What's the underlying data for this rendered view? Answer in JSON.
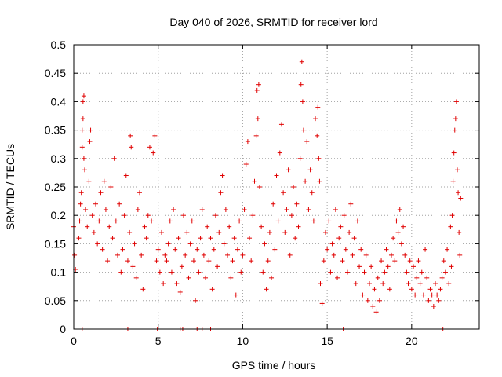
{
  "chart_data": {
    "type": "scatter",
    "title": "Day 040 of 2026, SRMTID for receiver lord",
    "xlabel": "GPS time / hours",
    "ylabel": "SRMTID / TECUs",
    "xlim": [
      0,
      24
    ],
    "ylim": [
      0,
      0.5
    ],
    "x_ticks": [
      "0",
      "5",
      "10",
      "15",
      "20"
    ],
    "x_tick_values": [
      0,
      5,
      10,
      15,
      20
    ],
    "y_ticks": [
      "0",
      "0.05",
      "0.1",
      "0.15",
      "0.2",
      "0.25",
      "0.3",
      "0.35",
      "0.4",
      "0.45",
      "0.5"
    ],
    "y_tick_values": [
      0,
      0.05,
      0.1,
      0.15,
      0.2,
      0.25,
      0.3,
      0.35,
      0.4,
      0.45,
      0.5
    ],
    "grid": true,
    "marker": "+",
    "marker_color": "#e00000",
    "series": [
      {
        "name": "SRMTID",
        "points": [
          [
            0.0,
            0.18
          ],
          [
            0.05,
            0.13
          ],
          [
            0.1,
            0.105
          ],
          [
            0.3,
            0.16
          ],
          [
            0.35,
            0.19
          ],
          [
            0.4,
            0.22
          ],
          [
            0.45,
            0.24
          ],
          [
            0.5,
            0.32
          ],
          [
            0.5,
            0.35
          ],
          [
            0.55,
            0.37
          ],
          [
            0.55,
            0.4
          ],
          [
            0.6,
            0.41
          ],
          [
            0.6,
            0.3
          ],
          [
            0.65,
            0.28
          ],
          [
            0.7,
            0.21
          ],
          [
            0.8,
            0.18
          ],
          [
            0.9,
            0.26
          ],
          [
            0.95,
            0.33
          ],
          [
            1.0,
            0.35
          ],
          [
            1.1,
            0.2
          ],
          [
            1.2,
            0.17
          ],
          [
            1.3,
            0.22
          ],
          [
            1.4,
            0.15
          ],
          [
            1.5,
            0.19
          ],
          [
            1.6,
            0.24
          ],
          [
            1.7,
            0.14
          ],
          [
            1.8,
            0.26
          ],
          [
            1.9,
            0.21
          ],
          [
            2.0,
            0.12
          ],
          [
            2.1,
            0.18
          ],
          [
            2.2,
            0.25
          ],
          [
            2.3,
            0.16
          ],
          [
            2.4,
            0.3
          ],
          [
            2.5,
            0.19
          ],
          [
            2.6,
            0.13
          ],
          [
            2.7,
            0.22
          ],
          [
            2.8,
            0.1
          ],
          [
            2.9,
            0.14
          ],
          [
            3.0,
            0.2
          ],
          [
            3.1,
            0.27
          ],
          [
            3.2,
            0.12
          ],
          [
            3.3,
            0.17
          ],
          [
            3.35,
            0.34
          ],
          [
            3.4,
            0.32
          ],
          [
            3.5,
            0.11
          ],
          [
            3.6,
            0.15
          ],
          [
            3.7,
            0.09
          ],
          [
            3.8,
            0.21
          ],
          [
            3.9,
            0.24
          ],
          [
            4.0,
            0.13
          ],
          [
            4.1,
            0.07
          ],
          [
            4.2,
            0.18
          ],
          [
            4.3,
            0.16
          ],
          [
            4.4,
            0.2
          ],
          [
            4.5,
            0.32
          ],
          [
            4.6,
            0.19
          ],
          [
            4.7,
            0.31
          ],
          [
            4.8,
            0.34
          ],
          [
            4.9,
            0.12
          ],
          [
            5.0,
            0.14
          ],
          [
            5.1,
            0.1
          ],
          [
            5.2,
            0.17
          ],
          [
            5.3,
            0.08
          ],
          [
            5.4,
            0.13
          ],
          [
            5.5,
            0.12
          ],
          [
            5.6,
            0.15
          ],
          [
            5.7,
            0.19
          ],
          [
            5.8,
            0.1
          ],
          [
            5.9,
            0.21
          ],
          [
            6.0,
            0.14
          ],
          [
            6.1,
            0.08
          ],
          [
            6.2,
            0.16
          ],
          [
            6.3,
            0.065
          ],
          [
            6.4,
            0.11
          ],
          [
            6.5,
            0.2
          ],
          [
            6.6,
            0.13
          ],
          [
            6.7,
            0.17
          ],
          [
            6.8,
            0.09
          ],
          [
            6.9,
            0.15
          ],
          [
            7.0,
            0.19
          ],
          [
            7.1,
            0.12
          ],
          [
            7.2,
            0.05
          ],
          [
            7.3,
            0.14
          ],
          [
            7.4,
            0.1
          ],
          [
            7.5,
            0.16
          ],
          [
            7.6,
            0.21
          ],
          [
            7.7,
            0.13
          ],
          [
            7.8,
            0.09
          ],
          [
            7.9,
            0.18
          ],
          [
            8.0,
            0.12
          ],
          [
            8.1,
            0.16
          ],
          [
            8.2,
            0.07
          ],
          [
            8.3,
            0.14
          ],
          [
            8.4,
            0.2
          ],
          [
            8.5,
            0.11
          ],
          [
            8.6,
            0.17
          ],
          [
            8.7,
            0.24
          ],
          [
            8.8,
            0.27
          ],
          [
            8.9,
            0.15
          ],
          [
            9.0,
            0.21
          ],
          [
            9.1,
            0.13
          ],
          [
            9.2,
            0.18
          ],
          [
            9.3,
            0.09
          ],
          [
            9.4,
            0.12
          ],
          [
            9.5,
            0.16
          ],
          [
            9.6,
            0.06
          ],
          [
            9.7,
            0.14
          ],
          [
            9.8,
            0.19
          ],
          [
            9.9,
            0.1
          ],
          [
            10.0,
            0.13
          ],
          [
            10.1,
            0.21
          ],
          [
            10.2,
            0.29
          ],
          [
            10.3,
            0.33
          ],
          [
            10.4,
            0.16
          ],
          [
            10.5,
            0.12
          ],
          [
            10.6,
            0.2
          ],
          [
            10.7,
            0.26
          ],
          [
            10.8,
            0.34
          ],
          [
            10.85,
            0.42
          ],
          [
            10.9,
            0.37
          ],
          [
            10.95,
            0.43
          ],
          [
            11.0,
            0.25
          ],
          [
            11.1,
            0.18
          ],
          [
            11.2,
            0.1
          ],
          [
            11.3,
            0.15
          ],
          [
            11.4,
            0.07
          ],
          [
            11.5,
            0.12
          ],
          [
            11.6,
            0.17
          ],
          [
            11.7,
            0.09
          ],
          [
            11.8,
            0.22
          ],
          [
            11.9,
            0.14
          ],
          [
            12.0,
            0.27
          ],
          [
            12.1,
            0.19
          ],
          [
            12.2,
            0.31
          ],
          [
            12.3,
            0.36
          ],
          [
            12.4,
            0.24
          ],
          [
            12.5,
            0.17
          ],
          [
            12.6,
            0.21
          ],
          [
            12.7,
            0.28
          ],
          [
            12.8,
            0.13
          ],
          [
            12.9,
            0.2
          ],
          [
            13.0,
            0.25
          ],
          [
            13.1,
            0.16
          ],
          [
            13.2,
            0.22
          ],
          [
            13.3,
            0.18
          ],
          [
            13.4,
            0.3
          ],
          [
            13.45,
            0.43
          ],
          [
            13.5,
            0.47
          ],
          [
            13.55,
            0.4
          ],
          [
            13.6,
            0.35
          ],
          [
            13.7,
            0.26
          ],
          [
            13.8,
            0.33
          ],
          [
            13.9,
            0.21
          ],
          [
            14.0,
            0.28
          ],
          [
            14.1,
            0.24
          ],
          [
            14.2,
            0.19
          ],
          [
            14.3,
            0.37
          ],
          [
            14.4,
            0.34
          ],
          [
            14.45,
            0.39
          ],
          [
            14.5,
            0.3
          ],
          [
            14.55,
            0.26
          ],
          [
            14.6,
            0.08
          ],
          [
            14.7,
            0.045
          ],
          [
            14.8,
            0.12
          ],
          [
            14.9,
            0.17
          ],
          [
            15.0,
            0.14
          ],
          [
            15.1,
            0.19
          ],
          [
            15.2,
            0.1
          ],
          [
            15.3,
            0.15
          ],
          [
            15.4,
            0.13
          ],
          [
            15.5,
            0.21
          ],
          [
            15.6,
            0.09
          ],
          [
            15.7,
            0.16
          ],
          [
            15.8,
            0.18
          ],
          [
            15.9,
            0.12
          ],
          [
            16.0,
            0.2
          ],
          [
            16.1,
            0.14
          ],
          [
            16.2,
            0.1
          ],
          [
            16.3,
            0.17
          ],
          [
            16.4,
            0.22
          ],
          [
            16.5,
            0.13
          ],
          [
            16.6,
            0.16
          ],
          [
            16.7,
            0.08
          ],
          [
            16.8,
            0.19
          ],
          [
            16.9,
            0.11
          ],
          [
            17.0,
            0.14
          ],
          [
            17.1,
            0.06
          ],
          [
            17.2,
            0.1
          ],
          [
            17.3,
            0.13
          ],
          [
            17.4,
            0.05
          ],
          [
            17.5,
            0.08
          ],
          [
            17.6,
            0.11
          ],
          [
            17.7,
            0.04
          ],
          [
            17.8,
            0.07
          ],
          [
            17.9,
            0.03
          ],
          [
            18.0,
            0.09
          ],
          [
            18.1,
            0.05
          ],
          [
            18.2,
            0.12
          ],
          [
            18.3,
            0.08
          ],
          [
            18.4,
            0.1
          ],
          [
            18.5,
            0.14
          ],
          [
            18.6,
            0.11
          ],
          [
            18.7,
            0.07
          ],
          [
            18.8,
            0.13
          ],
          [
            18.9,
            0.16
          ],
          [
            19.0,
            0.12
          ],
          [
            19.1,
            0.19
          ],
          [
            19.2,
            0.17
          ],
          [
            19.3,
            0.21
          ],
          [
            19.4,
            0.15
          ],
          [
            19.5,
            0.18
          ],
          [
            19.6,
            0.13
          ],
          [
            19.7,
            0.1
          ],
          [
            19.8,
            0.08
          ],
          [
            19.9,
            0.12
          ],
          [
            20.0,
            0.07
          ],
          [
            20.1,
            0.11
          ],
          [
            20.2,
            0.06
          ],
          [
            20.3,
            0.09
          ],
          [
            20.4,
            0.12
          ],
          [
            20.5,
            0.08
          ],
          [
            20.6,
            0.1
          ],
          [
            20.7,
            0.06
          ],
          [
            20.8,
            0.14
          ],
          [
            20.9,
            0.09
          ],
          [
            21.0,
            0.05
          ],
          [
            21.1,
            0.07
          ],
          [
            21.2,
            0.06
          ],
          [
            21.3,
            0.04
          ],
          [
            21.4,
            0.08
          ],
          [
            21.5,
            0.06
          ],
          [
            21.6,
            0.05
          ],
          [
            21.7,
            0.07
          ],
          [
            21.8,
            0.09
          ],
          [
            21.9,
            0.12
          ],
          [
            22.0,
            0.1
          ],
          [
            22.1,
            0.14
          ],
          [
            22.2,
            0.08
          ],
          [
            22.3,
            0.18
          ],
          [
            22.35,
            0.11
          ],
          [
            22.4,
            0.2
          ],
          [
            22.45,
            0.26
          ],
          [
            22.5,
            0.31
          ],
          [
            22.55,
            0.35
          ],
          [
            22.6,
            0.37
          ],
          [
            22.65,
            0.4
          ],
          [
            22.7,
            0.28
          ],
          [
            22.75,
            0.24
          ],
          [
            22.8,
            0.17
          ],
          [
            22.85,
            0.13
          ],
          [
            22.9,
            0.23
          ],
          [
            0.5,
            0.0
          ],
          [
            3.2,
            0.0
          ],
          [
            4.95,
            0.0
          ],
          [
            6.3,
            0.0
          ],
          [
            6.45,
            0.0
          ],
          [
            7.3,
            0.0
          ],
          [
            7.6,
            0.0
          ],
          [
            8.1,
            0.0
          ],
          [
            15.95,
            0.0
          ],
          [
            21.85,
            0.0
          ]
        ]
      }
    ]
  }
}
